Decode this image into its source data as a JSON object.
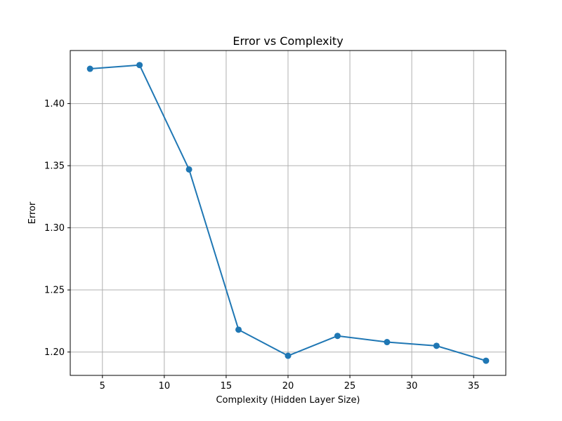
{
  "chart_data": {
    "type": "line",
    "title": "Error vs Complexity",
    "xlabel": "Complexity (Hidden Layer Size)",
    "ylabel": "Error",
    "x": [
      4,
      8,
      12,
      16,
      20,
      24,
      28,
      32,
      36
    ],
    "series": [
      {
        "values": [
          1.428,
          1.431,
          1.347,
          1.218,
          1.197,
          1.213,
          1.208,
          1.205,
          1.193
        ]
      }
    ],
    "xlim": [
      2.4,
      37.6
    ],
    "ylim": [
      1.1812,
      1.4427
    ],
    "xticks": [
      5,
      10,
      15,
      20,
      25,
      30,
      35
    ],
    "xtick_labels": [
      "5",
      "10",
      "15",
      "20",
      "25",
      "30",
      "35"
    ],
    "yticks": [
      1.2,
      1.25,
      1.3,
      1.35,
      1.4
    ],
    "ytick_labels": [
      "1.20",
      "1.25",
      "1.30",
      "1.35",
      "1.40"
    ],
    "grid": true,
    "markers": true,
    "line_color": "#1f77b4"
  }
}
